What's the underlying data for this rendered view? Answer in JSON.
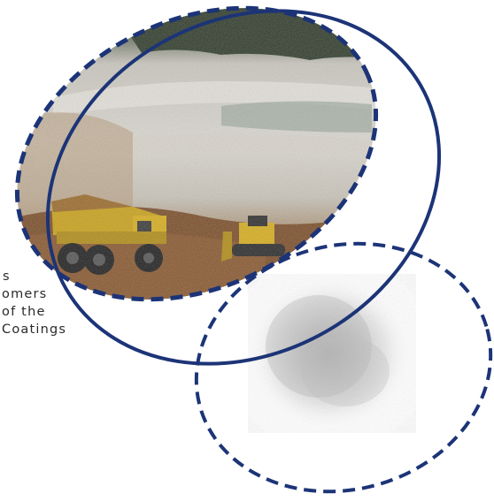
{
  "text_fragment": {
    "lines": [
      "s",
      "omers",
      "of the",
      "Coatings"
    ]
  },
  "colors": {
    "navy": "#1c3477",
    "dirt": "#8a5a30",
    "truck_yellow": "#d6ad1d",
    "sky_gray": "#cfcdc6",
    "powder": "#9a9a9a"
  },
  "images": {
    "mine": "open-pit-mine-photo",
    "powder": "white-powder-photo"
  }
}
